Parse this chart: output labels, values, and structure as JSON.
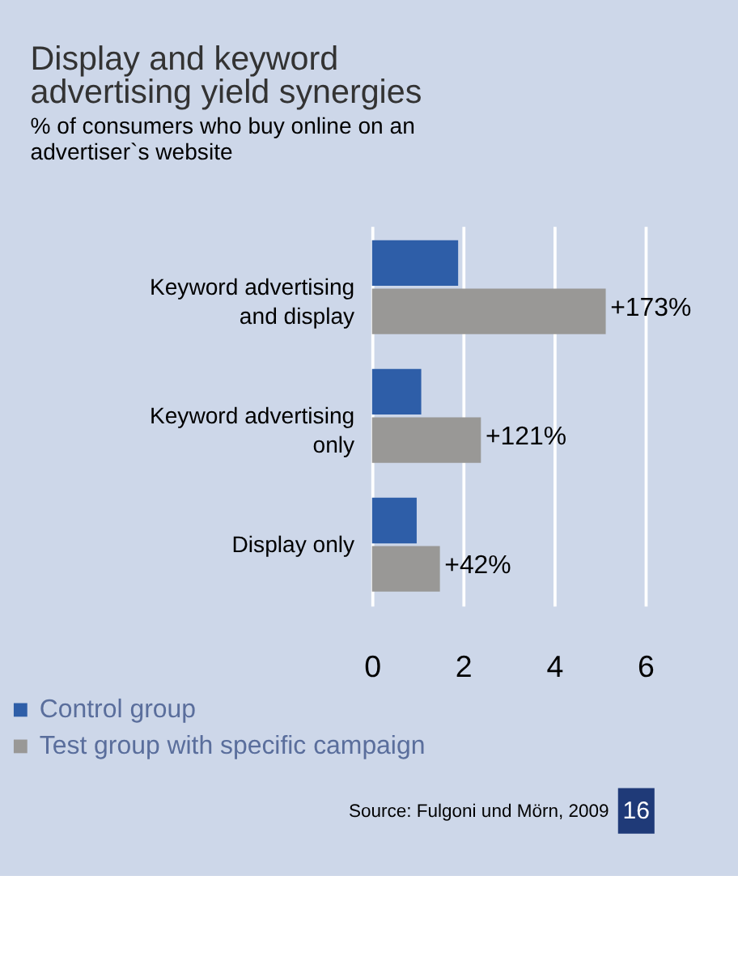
{
  "chart_data": {
    "type": "bar",
    "orientation": "horizontal",
    "title": "Display and keyword\nadvertising yield synergies",
    "subtitle": "% of consumers who buy online on an\nadvertiser`s website",
    "categories": [
      "Keyword advertising\nand display",
      "Keyword advertising\nonly",
      "Display only"
    ],
    "series": [
      {
        "name": "Control group",
        "color": "#2e5ea8",
        "values": [
          1.89,
          1.08,
          0.98
        ]
      },
      {
        "name": "Test group with specific campaign",
        "color": "#999896",
        "values": [
          5.13,
          2.39,
          1.49
        ]
      }
    ],
    "xlim": [
      0,
      6
    ],
    "xticks": [
      0,
      2,
      4,
      6
    ],
    "grid": "x",
    "legend": "bottom left",
    "marker": "square",
    "annotations": [
      "Source: Fulgoni und Mörn, 2009",
      "16",
      {
        "text": "+173%",
        "x": 5.13,
        "y": "Keyword advertising\nand display"
      },
      {
        "text": "+121%",
        "x": 2.39,
        "y": "Keyword advertising\nonly"
      },
      {
        "text": "+42%",
        "x": 1.49,
        "y": "Display only"
      }
    ]
  }
}
